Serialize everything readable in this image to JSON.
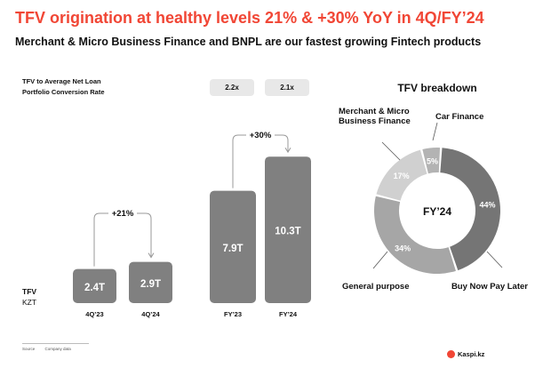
{
  "header": {
    "title": "TFV origination at healthy levels 21% & +30% YoY in 4Q/FY’24",
    "subtitle": "Merchant & Micro Business Finance and BNPL are our fastest growing Fintech products"
  },
  "metric": {
    "label_line1": "TFV to Average Net Loan",
    "label_line2": "Portfolio Conversion Rate",
    "values": [
      "2.2x",
      "2.1x"
    ]
  },
  "unit": {
    "line1": "TFV",
    "line2": "KZT"
  },
  "colors": {
    "accent": "#f14635",
    "bar": "#808080",
    "pill": "#e8e8e8"
  },
  "chart_data": [
    {
      "type": "bar",
      "categories": [
        "4Q’23",
        "4Q’24"
      ],
      "values": [
        2.4,
        2.9
      ],
      "labels": [
        "2.4T",
        "2.9T"
      ],
      "annotation": "+21%"
    },
    {
      "type": "bar",
      "categories": [
        "FY’23",
        "FY’24"
      ],
      "values": [
        7.9,
        10.3
      ],
      "labels": [
        "7.9T",
        "10.3T"
      ],
      "annotation": "+30%"
    },
    {
      "type": "pie",
      "title": "TFV breakdown",
      "center_label": "FY’24",
      "slices": [
        {
          "name": "Buy Now Pay Later",
          "value": 44,
          "label": "44%",
          "color": "#757575"
        },
        {
          "name": "General purpose",
          "value": 34,
          "label": "34%",
          "color": "#a6a6a6"
        },
        {
          "name": "Merchant & Micro Business Finance",
          "value": 17,
          "label": "17%",
          "color": "#d0d0d0"
        },
        {
          "name": "Car Finance",
          "value": 5,
          "label": "5%",
          "color": "#b3b3b3"
        }
      ]
    }
  ],
  "footer": {
    "source_label": "Source",
    "source_value": "Company data",
    "logo": "Kaspi.kz"
  }
}
